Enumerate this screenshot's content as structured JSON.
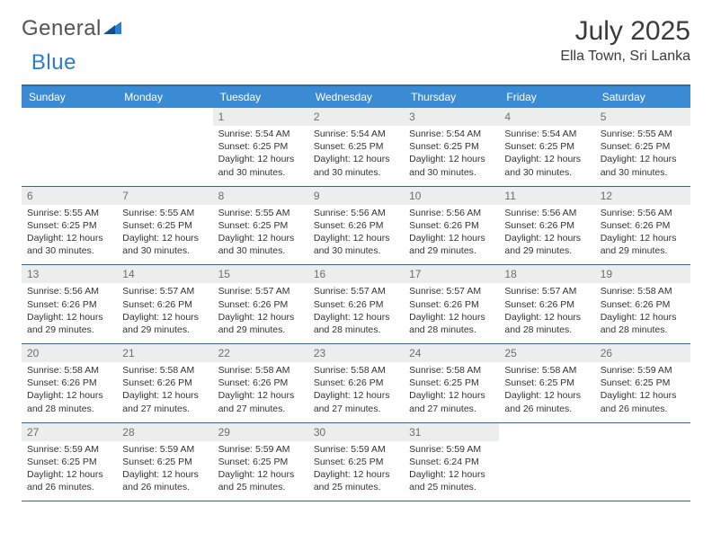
{
  "logo": {
    "word1": "General",
    "word2": "Blue"
  },
  "title": "July 2025",
  "location": "Ella Town, Sri Lanka",
  "colors": {
    "header_bg": "#3b8bd4",
    "header_border": "#2b6aa6",
    "daynum_bg": "#eceded",
    "daynum_color": "#6b6e72",
    "text": "#333333",
    "logo_gray": "#545454",
    "logo_blue": "#2b7cd3"
  },
  "weekdays": [
    "Sunday",
    "Monday",
    "Tuesday",
    "Wednesday",
    "Thursday",
    "Friday",
    "Saturday"
  ],
  "first_weekday_index": 2,
  "days": [
    {
      "n": 1,
      "sunrise": "5:54 AM",
      "sunset": "6:25 PM",
      "daylight": "12 hours and 30 minutes."
    },
    {
      "n": 2,
      "sunrise": "5:54 AM",
      "sunset": "6:25 PM",
      "daylight": "12 hours and 30 minutes."
    },
    {
      "n": 3,
      "sunrise": "5:54 AM",
      "sunset": "6:25 PM",
      "daylight": "12 hours and 30 minutes."
    },
    {
      "n": 4,
      "sunrise": "5:54 AM",
      "sunset": "6:25 PM",
      "daylight": "12 hours and 30 minutes."
    },
    {
      "n": 5,
      "sunrise": "5:55 AM",
      "sunset": "6:25 PM",
      "daylight": "12 hours and 30 minutes."
    },
    {
      "n": 6,
      "sunrise": "5:55 AM",
      "sunset": "6:25 PM",
      "daylight": "12 hours and 30 minutes."
    },
    {
      "n": 7,
      "sunrise": "5:55 AM",
      "sunset": "6:25 PM",
      "daylight": "12 hours and 30 minutes."
    },
    {
      "n": 8,
      "sunrise": "5:55 AM",
      "sunset": "6:25 PM",
      "daylight": "12 hours and 30 minutes."
    },
    {
      "n": 9,
      "sunrise": "5:56 AM",
      "sunset": "6:26 PM",
      "daylight": "12 hours and 30 minutes."
    },
    {
      "n": 10,
      "sunrise": "5:56 AM",
      "sunset": "6:26 PM",
      "daylight": "12 hours and 29 minutes."
    },
    {
      "n": 11,
      "sunrise": "5:56 AM",
      "sunset": "6:26 PM",
      "daylight": "12 hours and 29 minutes."
    },
    {
      "n": 12,
      "sunrise": "5:56 AM",
      "sunset": "6:26 PM",
      "daylight": "12 hours and 29 minutes."
    },
    {
      "n": 13,
      "sunrise": "5:56 AM",
      "sunset": "6:26 PM",
      "daylight": "12 hours and 29 minutes."
    },
    {
      "n": 14,
      "sunrise": "5:57 AM",
      "sunset": "6:26 PM",
      "daylight": "12 hours and 29 minutes."
    },
    {
      "n": 15,
      "sunrise": "5:57 AM",
      "sunset": "6:26 PM",
      "daylight": "12 hours and 29 minutes."
    },
    {
      "n": 16,
      "sunrise": "5:57 AM",
      "sunset": "6:26 PM",
      "daylight": "12 hours and 28 minutes."
    },
    {
      "n": 17,
      "sunrise": "5:57 AM",
      "sunset": "6:26 PM",
      "daylight": "12 hours and 28 minutes."
    },
    {
      "n": 18,
      "sunrise": "5:57 AM",
      "sunset": "6:26 PM",
      "daylight": "12 hours and 28 minutes."
    },
    {
      "n": 19,
      "sunrise": "5:58 AM",
      "sunset": "6:26 PM",
      "daylight": "12 hours and 28 minutes."
    },
    {
      "n": 20,
      "sunrise": "5:58 AM",
      "sunset": "6:26 PM",
      "daylight": "12 hours and 28 minutes."
    },
    {
      "n": 21,
      "sunrise": "5:58 AM",
      "sunset": "6:26 PM",
      "daylight": "12 hours and 27 minutes."
    },
    {
      "n": 22,
      "sunrise": "5:58 AM",
      "sunset": "6:26 PM",
      "daylight": "12 hours and 27 minutes."
    },
    {
      "n": 23,
      "sunrise": "5:58 AM",
      "sunset": "6:26 PM",
      "daylight": "12 hours and 27 minutes."
    },
    {
      "n": 24,
      "sunrise": "5:58 AM",
      "sunset": "6:25 PM",
      "daylight": "12 hours and 27 minutes."
    },
    {
      "n": 25,
      "sunrise": "5:58 AM",
      "sunset": "6:25 PM",
      "daylight": "12 hours and 26 minutes."
    },
    {
      "n": 26,
      "sunrise": "5:59 AM",
      "sunset": "6:25 PM",
      "daylight": "12 hours and 26 minutes."
    },
    {
      "n": 27,
      "sunrise": "5:59 AM",
      "sunset": "6:25 PM",
      "daylight": "12 hours and 26 minutes."
    },
    {
      "n": 28,
      "sunrise": "5:59 AM",
      "sunset": "6:25 PM",
      "daylight": "12 hours and 26 minutes."
    },
    {
      "n": 29,
      "sunrise": "5:59 AM",
      "sunset": "6:25 PM",
      "daylight": "12 hours and 25 minutes."
    },
    {
      "n": 30,
      "sunrise": "5:59 AM",
      "sunset": "6:25 PM",
      "daylight": "12 hours and 25 minutes."
    },
    {
      "n": 31,
      "sunrise": "5:59 AM",
      "sunset": "6:24 PM",
      "daylight": "12 hours and 25 minutes."
    }
  ],
  "labels": {
    "sunrise": "Sunrise:",
    "sunset": "Sunset:",
    "daylight": "Daylight:"
  }
}
